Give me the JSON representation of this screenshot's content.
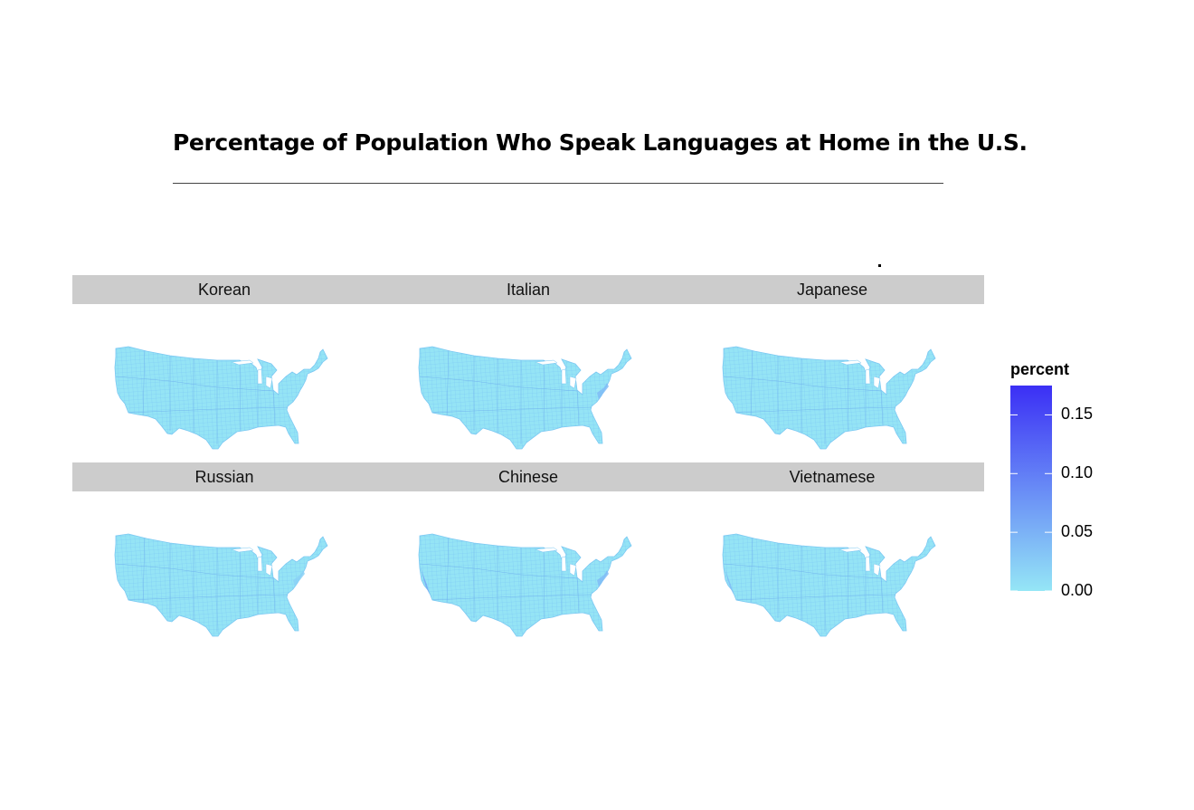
{
  "title": "Percentage of Population Who Speak Languages at Home in the U.S.",
  "panels": [
    {
      "label": "Korean",
      "hotspots": []
    },
    {
      "label": "Italian",
      "hotspots": [
        {
          "region": "northeast",
          "level": 0.04
        }
      ]
    },
    {
      "label": "Japanese",
      "hotspots": []
    },
    {
      "label": "Russian",
      "hotspots": [
        {
          "region": "northeast",
          "level": 0.02
        }
      ]
    },
    {
      "label": "Chinese",
      "hotspots": [
        {
          "region": "california",
          "level": 0.06
        },
        {
          "region": "northeast",
          "level": 0.04
        }
      ]
    },
    {
      "label": "Vietnamese",
      "hotspots": [
        {
          "region": "california",
          "level": 0.04
        }
      ]
    }
  ],
  "legend": {
    "title": "percent",
    "min": 0,
    "max": 0.175,
    "ticks": [
      "0.00",
      "0.05",
      "0.10",
      "0.15"
    ],
    "tick_values": [
      0,
      0.05,
      0.1,
      0.15
    ],
    "low_color": "#95e6f6",
    "high_color": "#3b2ff5"
  },
  "colors": {
    "fill": "#95e4f5",
    "county_border": "#6fb6f2",
    "strip": "#cccccc"
  }
}
